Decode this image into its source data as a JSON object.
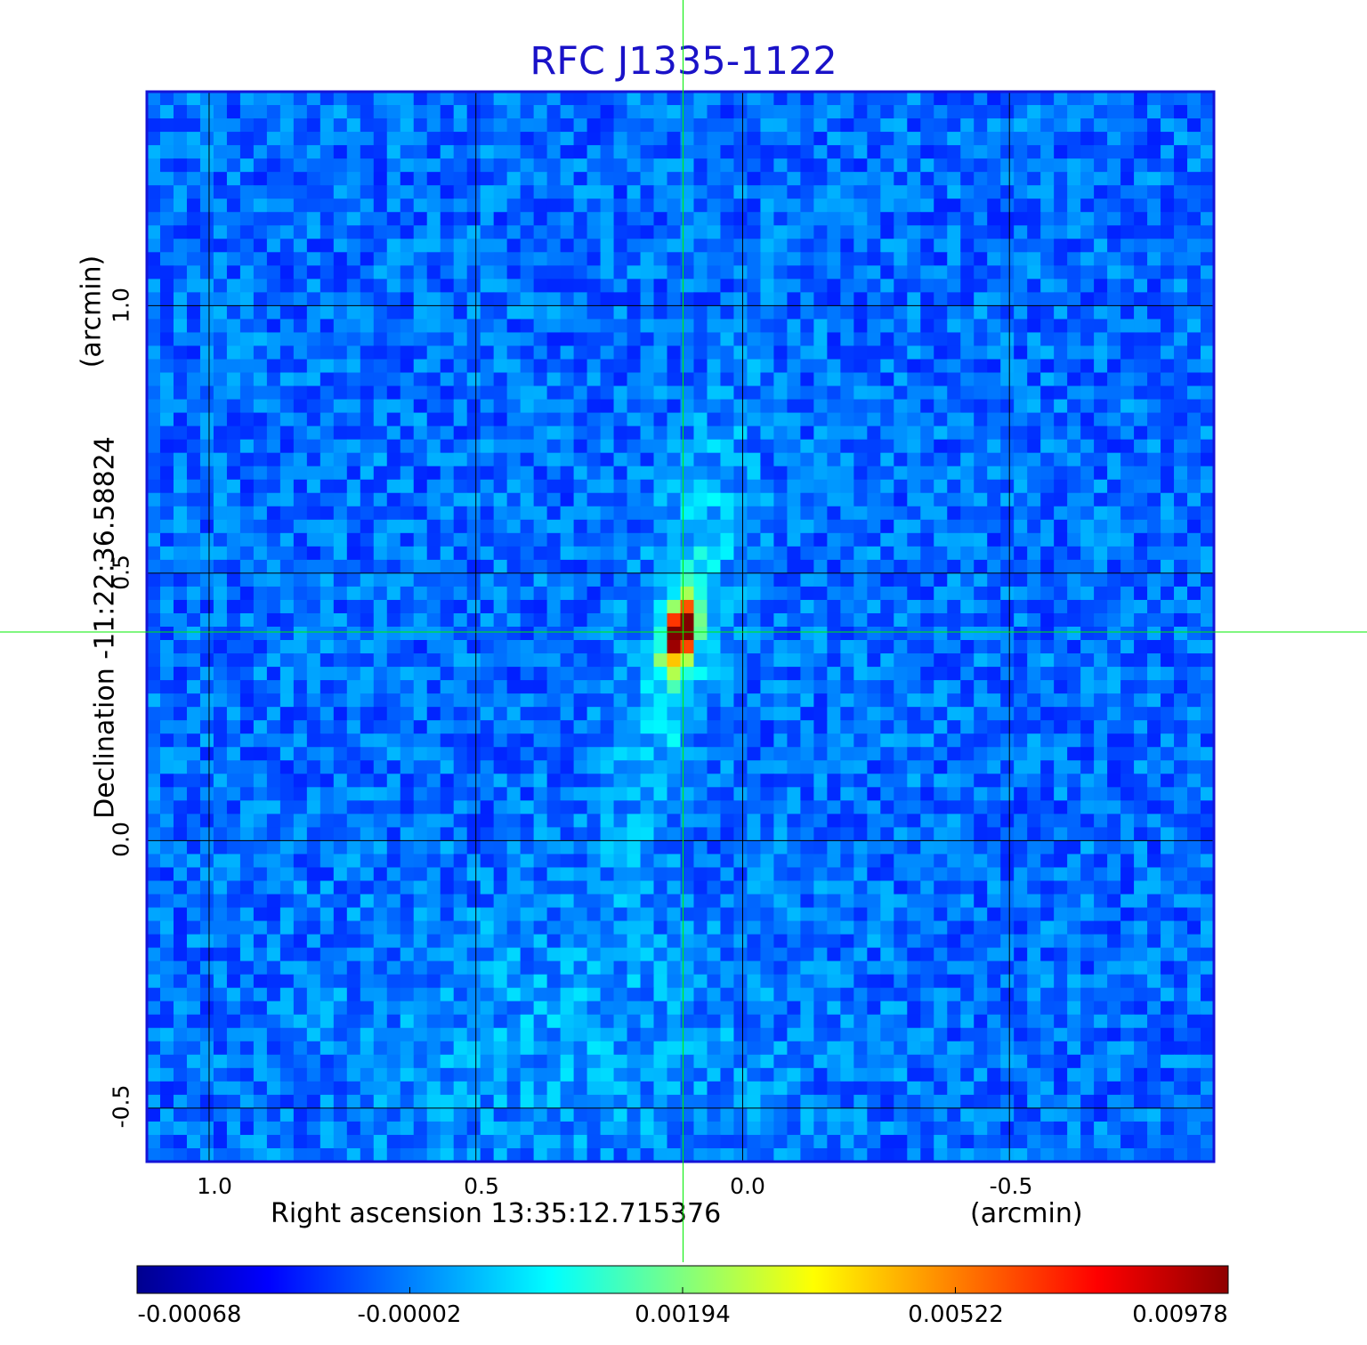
{
  "chart_data": {
    "type": "heatmap",
    "title": "RFC J1335-1122",
    "xlabel": "Right ascension  13:35:12.715376",
    "xunit": "(arcmin)",
    "ylabel": "Declination  -11:22:36.58824",
    "yunit": "(arcmin)",
    "xlim": [
      1.1167,
      -0.8833
    ],
    "ylim": [
      -0.6,
      1.4
    ],
    "x_ticks": [
      {
        "value": 1.0,
        "label": "1.0"
      },
      {
        "value": 0.5,
        "label": "0.5"
      },
      {
        "value": 0.0,
        "label": "0.0"
      },
      {
        "value": -0.5,
        "label": "-0.5"
      }
    ],
    "y_ticks": [
      {
        "value": 1.0,
        "label": "1.0"
      },
      {
        "value": 0.5,
        "label": "0.5"
      },
      {
        "value": 0.0,
        "label": "0.0"
      },
      {
        "value": -0.5,
        "label": "-0.5"
      }
    ],
    "grid": true,
    "crosshair": {
      "x": 0.1117,
      "y": 0.39,
      "color": "#00ee00"
    },
    "source": {
      "x": 0.115,
      "y": 0.39,
      "peak": 0.00978
    },
    "colormap": "jet",
    "colorbar": {
      "position": "bottom",
      "ticks": [
        {
          "value": -0.00068,
          "label": "-0.00068",
          "frac": 0.0
        },
        {
          "value": -2e-05,
          "label": "-0.00002",
          "frac": 0.25
        },
        {
          "value": 0.00194,
          "label": "0.00194",
          "frac": 0.5
        },
        {
          "value": 0.00522,
          "label": "0.00522",
          "frac": 0.75
        },
        {
          "value": 0.00978,
          "label": "0.00978",
          "frac": 1.0
        }
      ]
    }
  }
}
